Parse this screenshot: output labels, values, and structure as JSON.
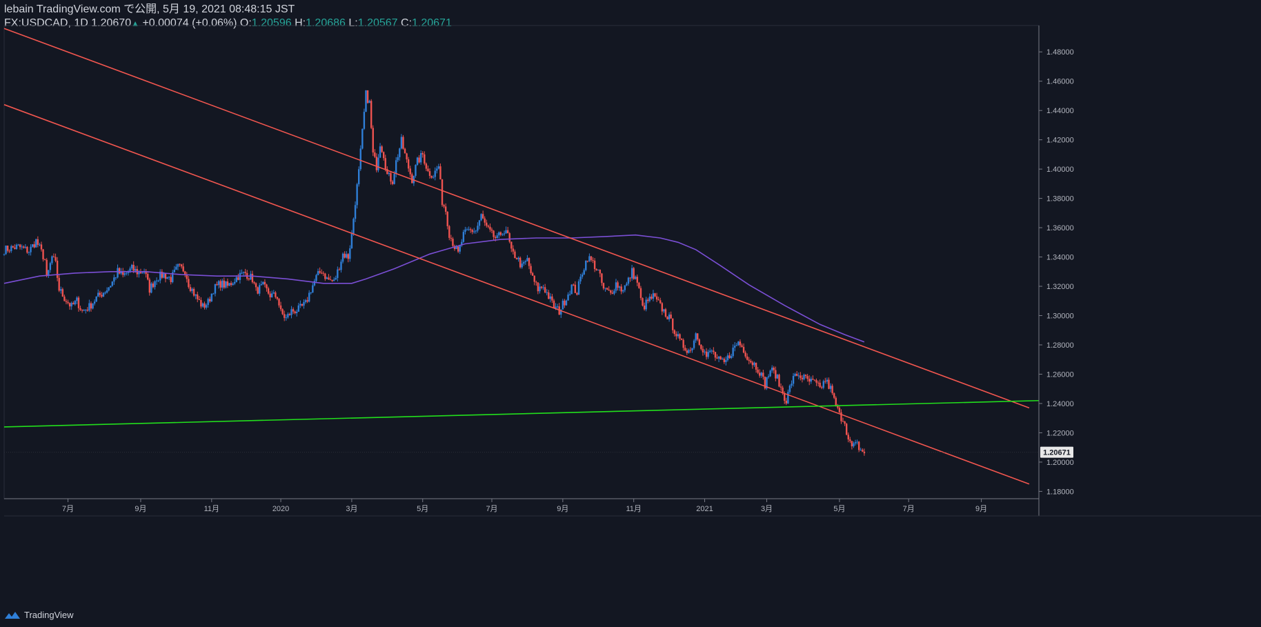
{
  "header": {
    "publisher": "lebain TradingView.com で公開, 5月 19, 2021 08:48:15 JST",
    "symbol": "FX:USDCAD, 1D",
    "last": "1.20670",
    "arrow": "▲",
    "change": "+0.00074 (+0.06%)",
    "o_label": "O:",
    "o_value": "1.20596",
    "h_label": "H:",
    "h_value": "1.20686",
    "l_label": "L:",
    "l_value": "1.20567",
    "c_label": "C:",
    "c_value": "1.20671"
  },
  "footer": {
    "brand": "TradingView"
  },
  "colors": {
    "background": "#131722",
    "up": "#2f7fd8",
    "down": "#ef5350",
    "trendline": "#f2564f",
    "support": "#22e01c",
    "ma": "#7b4fd6",
    "axis_text": "#b2b5be",
    "price_tag_bg": "#e8e8e8",
    "price_tag_text": "#131722"
  },
  "chart_data": {
    "type": "candlestick",
    "symbol": "FX:USDCAD",
    "timeframe": "1D",
    "x_domain_months": [
      0,
      28.9
    ],
    "x_domain_note": "months since 2019-05 (0 = start of visible range)",
    "ylim": [
      1.175,
      1.498
    ],
    "y_ticks": [
      "1.48000",
      "1.46000",
      "1.44000",
      "1.42000",
      "1.40000",
      "1.38000",
      "1.36000",
      "1.34000",
      "1.32000",
      "1.30000",
      "1.28000",
      "1.26000",
      "1.24000",
      "1.22000",
      "1.20000",
      "1.18000"
    ],
    "x_ticks": [
      {
        "label": "7月",
        "m": 1.8
      },
      {
        "label": "9月",
        "m": 3.85
      },
      {
        "label": "11月",
        "m": 5.85
      },
      {
        "label": "2020",
        "m": 7.8
      },
      {
        "label": "3月",
        "m": 9.8
      },
      {
        "label": "5月",
        "m": 11.8
      },
      {
        "label": "7月",
        "m": 13.75
      },
      {
        "label": "9月",
        "m": 15.75
      },
      {
        "label": "11月",
        "m": 17.75
      },
      {
        "label": "2021",
        "m": 19.75
      },
      {
        "label": "3月",
        "m": 21.5
      },
      {
        "label": "5月",
        "m": 23.55
      },
      {
        "label": "7月",
        "m": 25.5
      },
      {
        "label": "9月",
        "m": 27.55
      }
    ],
    "last_price": "1.20671",
    "last_price_value": 1.20671,
    "price_path": [
      [
        0.0,
        1.345
      ],
      [
        0.4,
        1.347
      ],
      [
        0.7,
        1.344
      ],
      [
        0.9,
        1.351
      ],
      [
        1.0,
        1.346
      ],
      [
        1.15,
        1.338
      ],
      [
        1.2,
        1.325
      ],
      [
        1.35,
        1.34
      ],
      [
        1.45,
        1.335
      ],
      [
        1.55,
        1.318
      ],
      [
        1.7,
        1.312
      ],
      [
        1.9,
        1.306
      ],
      [
        2.05,
        1.31
      ],
      [
        2.2,
        1.303
      ],
      [
        2.4,
        1.306
      ],
      [
        2.6,
        1.312
      ],
      [
        2.9,
        1.318
      ],
      [
        3.05,
        1.323
      ],
      [
        3.2,
        1.33
      ],
      [
        3.35,
        1.327
      ],
      [
        3.6,
        1.332
      ],
      [
        3.8,
        1.329
      ],
      [
        3.95,
        1.331
      ],
      [
        4.1,
        1.318
      ],
      [
        4.3,
        1.326
      ],
      [
        4.5,
        1.328
      ],
      [
        4.7,
        1.325
      ],
      [
        4.9,
        1.333
      ],
      [
        5.1,
        1.331
      ],
      [
        5.2,
        1.322
      ],
      [
        5.4,
        1.313
      ],
      [
        5.6,
        1.306
      ],
      [
        5.75,
        1.309
      ],
      [
        5.9,
        1.318
      ],
      [
        6.1,
        1.322
      ],
      [
        6.3,
        1.32
      ],
      [
        6.6,
        1.327
      ],
      [
        6.8,
        1.329
      ],
      [
        7.0,
        1.325
      ],
      [
        7.1,
        1.317
      ],
      [
        7.3,
        1.32
      ],
      [
        7.5,
        1.314
      ],
      [
        7.7,
        1.313
      ],
      [
        7.8,
        1.302
      ],
      [
        7.95,
        1.298
      ],
      [
        8.1,
        1.303
      ],
      [
        8.3,
        1.304
      ],
      [
        8.5,
        1.308
      ],
      [
        8.65,
        1.318
      ],
      [
        8.8,
        1.326
      ],
      [
        8.95,
        1.331
      ],
      [
        9.1,
        1.325
      ],
      [
        9.3,
        1.323
      ],
      [
        9.4,
        1.33
      ],
      [
        9.55,
        1.342
      ],
      [
        9.7,
        1.34
      ],
      [
        9.8,
        1.355
      ],
      [
        9.9,
        1.378
      ],
      [
        10.0,
        1.398
      ],
      [
        10.1,
        1.425
      ],
      [
        10.2,
        1.451
      ],
      [
        10.3,
        1.445
      ],
      [
        10.4,
        1.41
      ],
      [
        10.5,
        1.402
      ],
      [
        10.6,
        1.418
      ],
      [
        10.7,
        1.41
      ],
      [
        10.8,
        1.396
      ],
      [
        10.95,
        1.392
      ],
      [
        11.05,
        1.405
      ],
      [
        11.2,
        1.419
      ],
      [
        11.35,
        1.405
      ],
      [
        11.5,
        1.393
      ],
      [
        11.65,
        1.405
      ],
      [
        11.8,
        1.41
      ],
      [
        11.95,
        1.398
      ],
      [
        12.1,
        1.396
      ],
      [
        12.25,
        1.402
      ],
      [
        12.35,
        1.378
      ],
      [
        12.45,
        1.372
      ],
      [
        12.55,
        1.356
      ],
      [
        12.7,
        1.347
      ],
      [
        12.8,
        1.342
      ],
      [
        12.95,
        1.355
      ],
      [
        13.1,
        1.358
      ],
      [
        13.3,
        1.358
      ],
      [
        13.45,
        1.368
      ],
      [
        13.6,
        1.36
      ],
      [
        13.75,
        1.355
      ],
      [
        13.9,
        1.352
      ],
      [
        14.05,
        1.358
      ],
      [
        14.2,
        1.355
      ],
      [
        14.3,
        1.343
      ],
      [
        14.45,
        1.34
      ],
      [
        14.6,
        1.333
      ],
      [
        14.75,
        1.338
      ],
      [
        14.9,
        1.325
      ],
      [
        15.05,
        1.318
      ],
      [
        15.2,
        1.32
      ],
      [
        15.35,
        1.313
      ],
      [
        15.5,
        1.306
      ],
      [
        15.65,
        1.303
      ],
      [
        15.8,
        1.31
      ],
      [
        16.0,
        1.32
      ],
      [
        16.15,
        1.316
      ],
      [
        16.3,
        1.33
      ],
      [
        16.45,
        1.34
      ],
      [
        16.6,
        1.336
      ],
      [
        16.75,
        1.33
      ],
      [
        16.9,
        1.318
      ],
      [
        17.1,
        1.315
      ],
      [
        17.25,
        1.322
      ],
      [
        17.4,
        1.318
      ],
      [
        17.55,
        1.321
      ],
      [
        17.7,
        1.33
      ],
      [
        17.85,
        1.323
      ],
      [
        18.0,
        1.305
      ],
      [
        18.15,
        1.31
      ],
      [
        18.3,
        1.313
      ],
      [
        18.45,
        1.308
      ],
      [
        18.6,
        1.303
      ],
      [
        18.75,
        1.298
      ],
      [
        18.9,
        1.29
      ],
      [
        19.05,
        1.282
      ],
      [
        19.2,
        1.278
      ],
      [
        19.35,
        1.276
      ],
      [
        19.5,
        1.288
      ],
      [
        19.65,
        1.28
      ],
      [
        19.8,
        1.272
      ],
      [
        19.95,
        1.276
      ],
      [
        20.1,
        1.27
      ],
      [
        20.3,
        1.267
      ],
      [
        20.5,
        1.275
      ],
      [
        20.7,
        1.282
      ],
      [
        20.85,
        1.277
      ],
      [
        21.0,
        1.27
      ],
      [
        21.15,
        1.267
      ],
      [
        21.3,
        1.262
      ],
      [
        21.45,
        1.253
      ],
      [
        21.6,
        1.263
      ],
      [
        21.75,
        1.26
      ],
      [
        21.9,
        1.25
      ],
      [
        22.05,
        1.242
      ],
      [
        22.2,
        1.255
      ],
      [
        22.35,
        1.26
      ],
      [
        22.5,
        1.258
      ],
      [
        22.7,
        1.255
      ],
      [
        22.85,
        1.254
      ],
      [
        23.0,
        1.25
      ],
      [
        23.15,
        1.256
      ],
      [
        23.3,
        1.25
      ],
      [
        23.4,
        1.242
      ],
      [
        23.55,
        1.232
      ],
      [
        23.7,
        1.228
      ],
      [
        23.8,
        1.215
      ],
      [
        23.9,
        1.21
      ],
      [
        24.05,
        1.212
      ],
      [
        24.15,
        1.208
      ],
      [
        24.25,
        1.2067
      ]
    ],
    "moving_average": [
      [
        0.0,
        1.322
      ],
      [
        1.0,
        1.327
      ],
      [
        2.0,
        1.329
      ],
      [
        3.0,
        1.33
      ],
      [
        4.0,
        1.33
      ],
      [
        5.0,
        1.328
      ],
      [
        6.0,
        1.327
      ],
      [
        7.0,
        1.327
      ],
      [
        8.0,
        1.325
      ],
      [
        9.0,
        1.322
      ],
      [
        9.8,
        1.322
      ],
      [
        10.2,
        1.325
      ],
      [
        11.0,
        1.332
      ],
      [
        12.0,
        1.342
      ],
      [
        13.0,
        1.349
      ],
      [
        14.0,
        1.352
      ],
      [
        15.0,
        1.353
      ],
      [
        16.0,
        1.353
      ],
      [
        17.0,
        1.354
      ],
      [
        17.8,
        1.355
      ],
      [
        18.5,
        1.353
      ],
      [
        19.0,
        1.35
      ],
      [
        19.5,
        1.345
      ],
      [
        20.2,
        1.334
      ],
      [
        21.0,
        1.321
      ],
      [
        22.0,
        1.307
      ],
      [
        23.0,
        1.294
      ],
      [
        23.7,
        1.287
      ],
      [
        24.25,
        1.282
      ]
    ],
    "trendlines": [
      {
        "name": "channel-upper",
        "from": [
          0.0,
          1.496
        ],
        "to": [
          28.9,
          1.237
        ]
      },
      {
        "name": "channel-lower",
        "from": [
          0.0,
          1.444
        ],
        "to": [
          28.9,
          1.185
        ]
      },
      {
        "name": "support-green",
        "from": [
          0.0,
          1.224
        ],
        "to": [
          29.2,
          1.242
        ]
      }
    ]
  }
}
